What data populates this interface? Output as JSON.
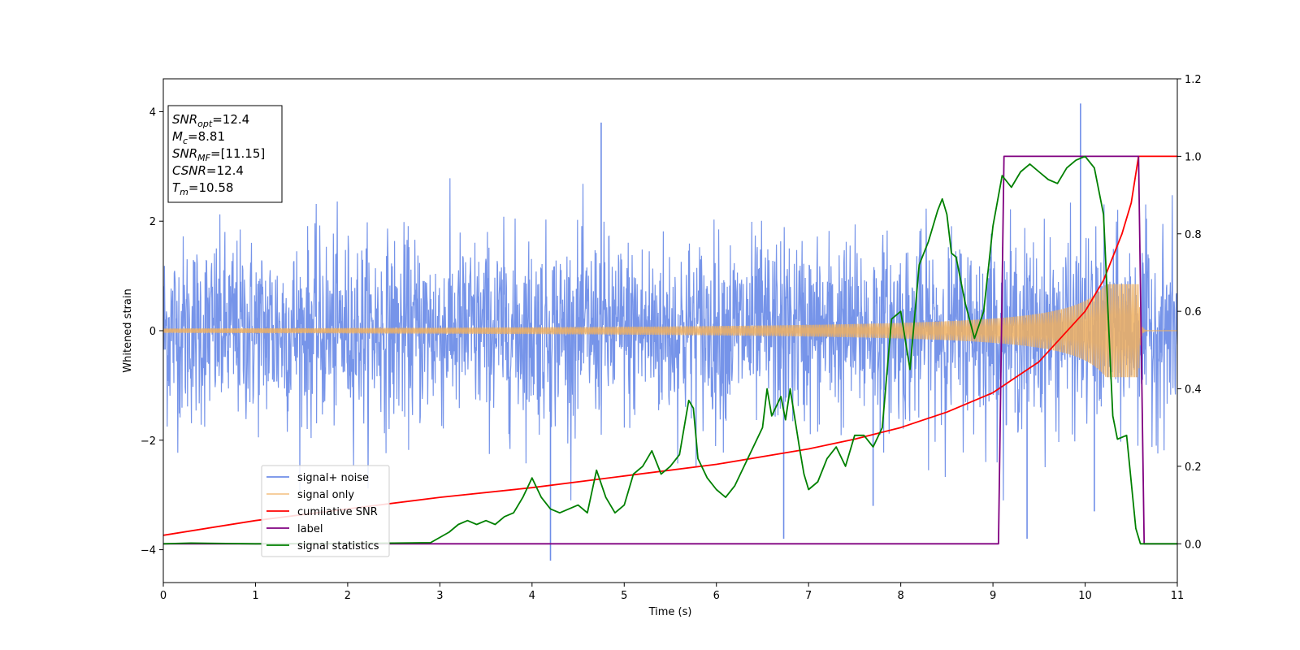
{
  "chart_data": {
    "type": "line",
    "xlabel": "Time (s)",
    "ylabel": "Whitened strain",
    "xlim": [
      0,
      11
    ],
    "ylim_left": [
      -4.6,
      4.6
    ],
    "ylim_right": [
      -0.1,
      1.2
    ],
    "x_ticks": [
      "0",
      "1",
      "2",
      "3",
      "4",
      "5",
      "6",
      "7",
      "8",
      "9",
      "10",
      "11"
    ],
    "y_left_ticks": [
      "4",
      "2",
      "0",
      "−2",
      "−4"
    ],
    "y_left_tick_values": [
      4,
      2,
      0,
      -2,
      -4
    ],
    "y_right_ticks": [
      "1.2",
      "1.0",
      "0.8",
      "0.6",
      "0.4",
      "0.2",
      "0.0"
    ],
    "y_right_tick_values": [
      1.2,
      1.0,
      0.8,
      0.6,
      0.4,
      0.2,
      0.0
    ],
    "legend_position": "lower-left",
    "series": [
      {
        "name": "signal+ noise",
        "axis": "left",
        "color": "#6f8ee8",
        "kind": "noise",
        "approx_std": 0.85,
        "outlier_spikes": [
          [
            4.75,
            3.8
          ],
          [
            9.95,
            4.15
          ],
          [
            4.2,
            -4.2
          ],
          [
            6.73,
            -3.8
          ],
          [
            9.37,
            -3.8
          ],
          [
            7.7,
            -3.2
          ],
          [
            10.1,
            -3.3
          ]
        ]
      },
      {
        "name": "signal only",
        "axis": "left",
        "color": "#f0b060",
        "kind": "chirp",
        "amplitude_start": 0.04,
        "amplitude_peak": 0.85,
        "t_merge": 10.58
      },
      {
        "name": "cumilative SNR",
        "axis": "right",
        "color": "#ff0000",
        "x": [
          0,
          1,
          2,
          3,
          4,
          5,
          6,
          7,
          7.5,
          8,
          8.5,
          9,
          9.5,
          10,
          10.2,
          10.4,
          10.5,
          10.58,
          11
        ],
        "y": [
          0.022,
          0.06,
          0.09,
          0.12,
          0.145,
          0.175,
          0.205,
          0.245,
          0.27,
          0.3,
          0.34,
          0.39,
          0.47,
          0.6,
          0.68,
          0.8,
          0.88,
          1.0,
          1.0
        ]
      },
      {
        "name": "label",
        "axis": "right",
        "color": "#800080",
        "x": [
          0,
          9.06,
          9.12,
          10.58,
          10.64,
          11
        ],
        "y": [
          0.0,
          0.0,
          1.0,
          1.0,
          0.0,
          0.0
        ]
      },
      {
        "name": "signal statistics",
        "axis": "right",
        "color": "#008000",
        "x": [
          0,
          0.3,
          1,
          2,
          2.5,
          2.9,
          3.1,
          3.2,
          3.3,
          3.4,
          3.5,
          3.6,
          3.7,
          3.8,
          3.9,
          4.0,
          4.1,
          4.2,
          4.3,
          4.5,
          4.6,
          4.7,
          4.8,
          4.9,
          5.0,
          5.1,
          5.2,
          5.3,
          5.4,
          5.5,
          5.6,
          5.7,
          5.75,
          5.8,
          5.9,
          6.0,
          6.1,
          6.2,
          6.3,
          6.4,
          6.5,
          6.55,
          6.6,
          6.7,
          6.75,
          6.8,
          6.9,
          6.95,
          7.0,
          7.1,
          7.2,
          7.3,
          7.4,
          7.5,
          7.6,
          7.7,
          7.8,
          7.9,
          8.0,
          8.1,
          8.2,
          8.3,
          8.4,
          8.45,
          8.5,
          8.55,
          8.6,
          8.7,
          8.8,
          8.9,
          9.0,
          9.1,
          9.2,
          9.3,
          9.4,
          9.5,
          9.6,
          9.7,
          9.8,
          9.9,
          10.0,
          10.1,
          10.2,
          10.3,
          10.35,
          10.45,
          10.55,
          10.6,
          10.7,
          11
        ],
        "y": [
          0.0,
          0.002,
          0.0,
          0.001,
          0.002,
          0.003,
          0.03,
          0.05,
          0.06,
          0.05,
          0.06,
          0.05,
          0.07,
          0.08,
          0.12,
          0.17,
          0.12,
          0.09,
          0.08,
          0.1,
          0.08,
          0.19,
          0.12,
          0.08,
          0.1,
          0.18,
          0.2,
          0.24,
          0.18,
          0.2,
          0.23,
          0.37,
          0.35,
          0.22,
          0.17,
          0.14,
          0.12,
          0.15,
          0.2,
          0.25,
          0.3,
          0.4,
          0.33,
          0.38,
          0.32,
          0.4,
          0.25,
          0.18,
          0.14,
          0.16,
          0.22,
          0.25,
          0.2,
          0.28,
          0.28,
          0.25,
          0.3,
          0.58,
          0.6,
          0.45,
          0.72,
          0.78,
          0.86,
          0.89,
          0.85,
          0.75,
          0.74,
          0.62,
          0.53,
          0.6,
          0.82,
          0.95,
          0.92,
          0.96,
          0.98,
          0.96,
          0.94,
          0.93,
          0.97,
          0.99,
          1.0,
          0.97,
          0.85,
          0.33,
          0.27,
          0.28,
          0.04,
          0.0,
          0.0,
          0.0
        ]
      }
    ]
  },
  "info_box": {
    "lines": [
      {
        "base": "SNR",
        "sub": "opt",
        "value": "=12.4"
      },
      {
        "base": "M",
        "sub": "c",
        "value": "=8.81"
      },
      {
        "base": "SNR",
        "sub": "MF",
        "value": "=[11.15]"
      },
      {
        "base": "CSNR",
        "sub": "",
        "value": "=12.4"
      },
      {
        "base": "T",
        "sub": "m",
        "value": "=10.58"
      }
    ]
  }
}
